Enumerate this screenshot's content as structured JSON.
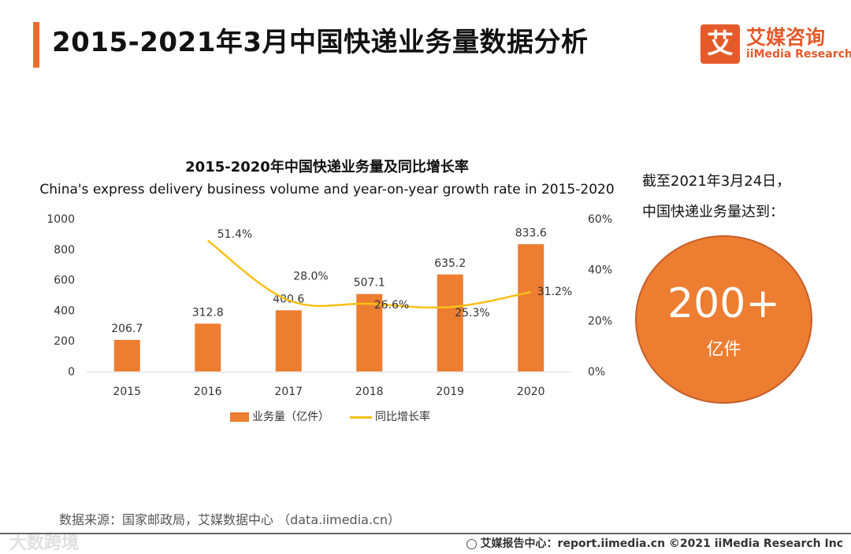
{
  "header": {
    "title": "2015-2021年3月中国快递业务量数据分析",
    "logo_mark": "艾",
    "logo_cn": "艾媒咨询",
    "logo_en": "iiMedia Research"
  },
  "colors": {
    "accent": "#ea6c2f",
    "bar": "#ed7d31",
    "line": "#fbbf17"
  },
  "chart_data": {
    "type": "bar",
    "title": "2015-2020年中国快递业务量及同比增长率",
    "subtitle": "China's express delivery business volume and year-on-year growth rate in 2015-2020",
    "categories": [
      "2015",
      "2016",
      "2017",
      "2018",
      "2019",
      "2020"
    ],
    "series": [
      {
        "name": "业务量（亿件）",
        "type": "bar",
        "axis": "left",
        "values": [
          206.7,
          312.8,
          400.6,
          507.1,
          635.2,
          833.6
        ]
      },
      {
        "name": "同比增长率",
        "type": "line",
        "axis": "right",
        "values": [
          null,
          51.4,
          28.0,
          26.6,
          25.3,
          31.2
        ]
      }
    ],
    "ylim_left": [
      0,
      1000
    ],
    "yticks_left": [
      "0",
      "200",
      "400",
      "600",
      "800",
      "1000"
    ],
    "ylim_right": [
      0,
      60
    ],
    "yticks_right": [
      "0%",
      "20%",
      "40%",
      "60%"
    ],
    "line_labels": [
      "",
      "51.4%",
      "28.0%",
      "26.6%",
      "25.3%",
      "31.2%"
    ],
    "bar_labels": [
      "206.7",
      "312.8",
      "400.6",
      "507.1",
      "635.2",
      "833.6"
    ],
    "grid": false,
    "legend_position": "bottom"
  },
  "side": {
    "line1": "截至2021年3月24日，",
    "line2": "中国快递业务量达到：",
    "value": "200+",
    "unit": "亿件"
  },
  "footer": {
    "source": "数据来源：国家邮政局，艾媒数据中心 （data.iimedia.cn）",
    "report": "艾媒报告中心：report.iimedia.cn  ©2021  iiMedia Research  Inc",
    "watermark": "大数跨境"
  }
}
